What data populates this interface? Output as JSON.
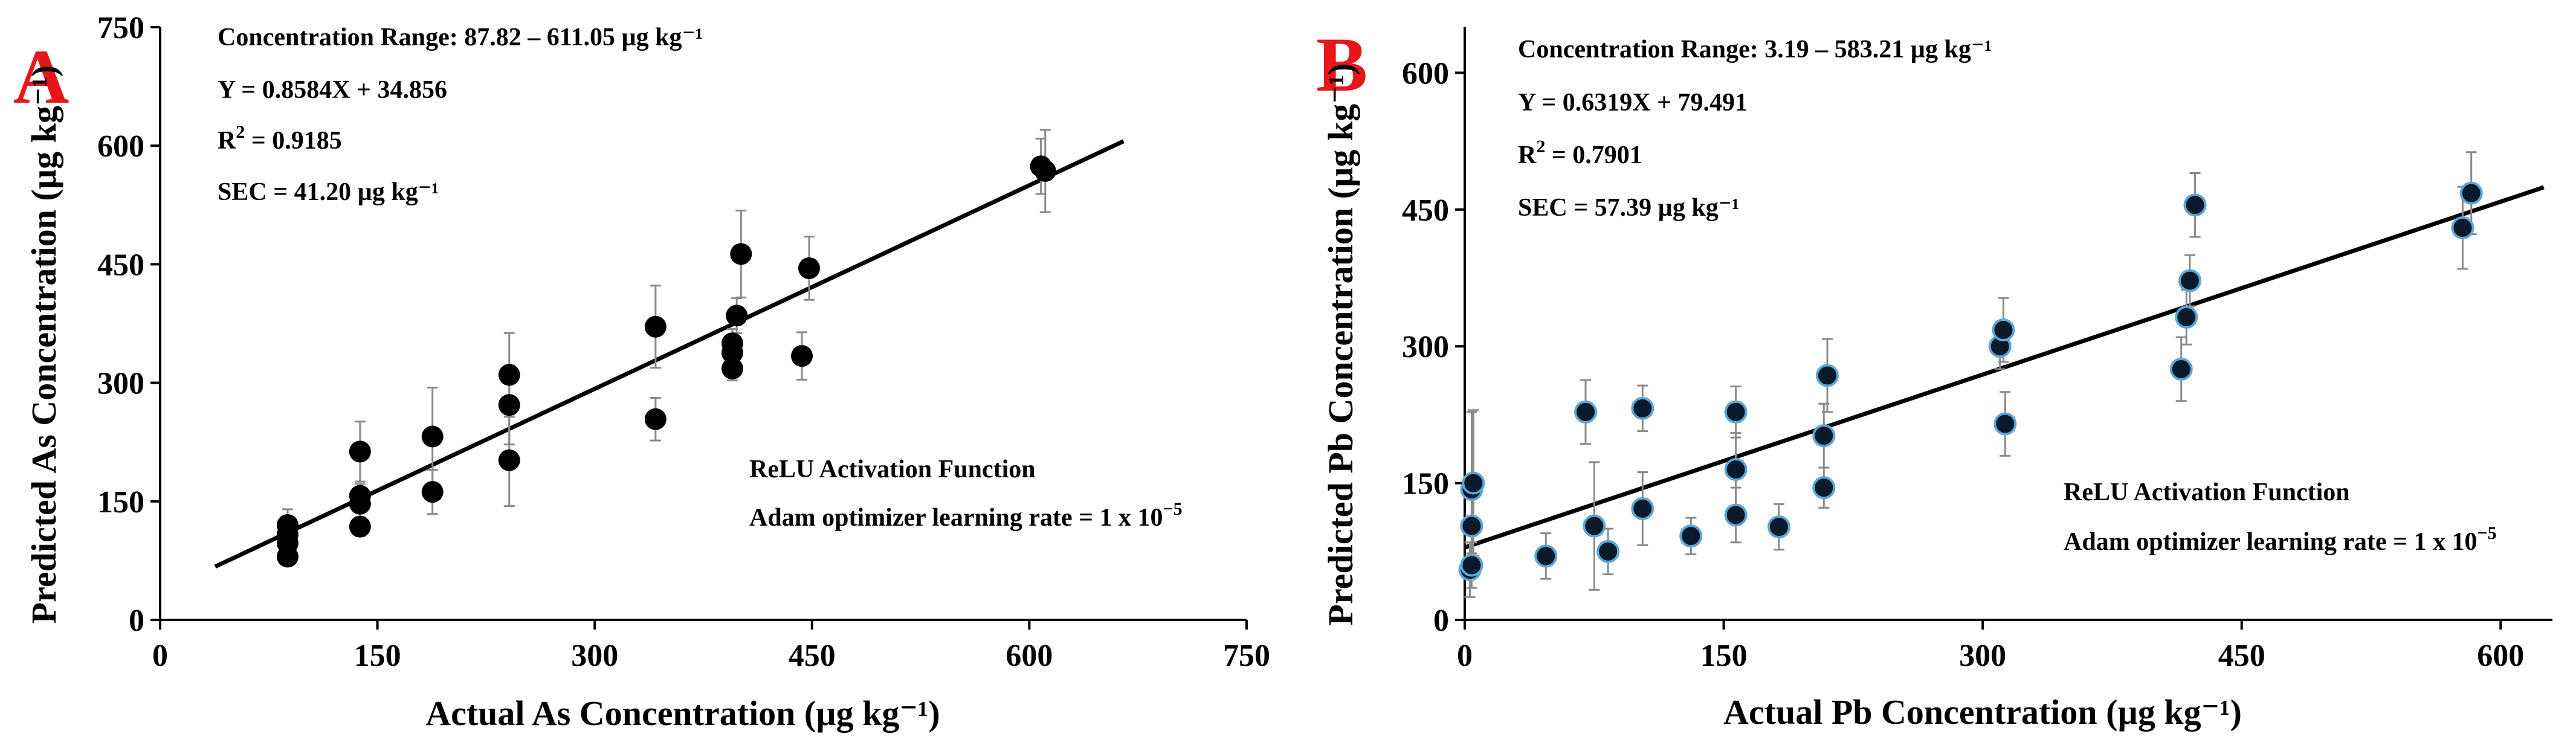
{
  "colors": {
    "panel_letter": "#e8161b",
    "point_fill_A": "#000000",
    "point_fill_B": "#0b1a2a",
    "point_edge_B": "#5aa7d8",
    "error_bar": "#8a8a8a",
    "fit_line": "#000000"
  },
  "chart_data": [
    {
      "type": "scatter",
      "panel_label": "A",
      "xlabel": "Actual As Concentration (µg kg⁻¹)",
      "ylabel": "Predicted As Concentration (µg kg⁻¹)",
      "xlim": [
        0,
        750
      ],
      "ylim": [
        0,
        750
      ],
      "xticks": [
        0,
        150,
        300,
        450,
        600,
        750
      ],
      "yticks": [
        0,
        150,
        300,
        450,
        600,
        750
      ],
      "grid": false,
      "annotations": {
        "range": "Concentration Range: 87.82 – 611.05 µg kg⁻¹",
        "equation": "Y = 0.8584X + 34.856",
        "r2_prefix": "R",
        "r2_sup": "2",
        "r2_value": " = 0.9185",
        "sec": "SEC = 41.20 µg kg⁻¹",
        "activation": "ReLU Activation Function",
        "optimizer_prefix": "Adam optimizer learning rate = 1 x 10",
        "optimizer_exp": "−5"
      },
      "fit_line": {
        "slope": 0.8584,
        "intercept": 34.856,
        "x_range": [
          38,
          665
        ]
      },
      "points": [
        {
          "x": 88,
          "y": 80,
          "err": 0
        },
        {
          "x": 88,
          "y": 97,
          "err": 10
        },
        {
          "x": 88,
          "y": 108,
          "err": 15
        },
        {
          "x": 88,
          "y": 120,
          "err": 20
        },
        {
          "x": 138,
          "y": 118,
          "err": 12
        },
        {
          "x": 138,
          "y": 147,
          "err": 18
        },
        {
          "x": 138,
          "y": 157,
          "err": 15
        },
        {
          "x": 138,
          "y": 213,
          "err": 38
        },
        {
          "x": 188,
          "y": 162,
          "err": 28
        },
        {
          "x": 188,
          "y": 232,
          "err": 62
        },
        {
          "x": 241,
          "y": 202,
          "err": 58
        },
        {
          "x": 241,
          "y": 272,
          "err": 50
        },
        {
          "x": 241,
          "y": 310,
          "err": 53
        },
        {
          "x": 342,
          "y": 254,
          "err": 27
        },
        {
          "x": 342,
          "y": 371,
          "err": 52
        },
        {
          "x": 395,
          "y": 318,
          "err": 15
        },
        {
          "x": 395,
          "y": 338,
          "err": 15
        },
        {
          "x": 395,
          "y": 350,
          "err": 18
        },
        {
          "x": 398,
          "y": 385,
          "err": 22
        },
        {
          "x": 401,
          "y": 463,
          "err": 55
        },
        {
          "x": 443,
          "y": 334,
          "err": 30
        },
        {
          "x": 448,
          "y": 445,
          "err": 40
        },
        {
          "x": 608,
          "y": 574,
          "err": 35
        },
        {
          "x": 611,
          "y": 568,
          "err": 52
        }
      ]
    },
    {
      "type": "scatter",
      "panel_label": "B",
      "xlabel": "Actual Pb Concentration (µg kg⁻¹)",
      "ylabel": "Predicted Pb Concentration (µg kg⁻¹)",
      "xlim": [
        0,
        630
      ],
      "ylim": [
        0,
        650
      ],
      "xticks": [
        0,
        150,
        300,
        450,
        600
      ],
      "yticks": [
        0,
        150,
        300,
        450,
        600
      ],
      "grid": false,
      "annotations": {
        "range": "Concentration Range: 3.19 – 583.21 µg kg⁻¹",
        "equation": "Y = 0.6319X + 79.491",
        "r2_prefix": "R",
        "r2_sup": "2",
        "r2_value": " = 0.7901",
        "sec": "SEC = 57.39 µg kg⁻¹",
        "activation": "ReLU Activation Function",
        "optimizer_prefix": "Adam optimizer learning rate = 1 x 10",
        "optimizer_exp": "−5"
      },
      "fit_line": {
        "slope": 0.6319,
        "intercept": 79.491,
        "x_range": [
          0,
          625
        ]
      },
      "points": [
        {
          "x": 3,
          "y": 55,
          "err": 30
        },
        {
          "x": 4,
          "y": 60,
          "err": 25
        },
        {
          "x": 4,
          "y": 103,
          "err": 30
        },
        {
          "x": 4,
          "y": 143,
          "err": 85
        },
        {
          "x": 5,
          "y": 150,
          "err": 80
        },
        {
          "x": 47,
          "y": 70,
          "err": 25
        },
        {
          "x": 70,
          "y": 228,
          "err": 35
        },
        {
          "x": 75,
          "y": 103,
          "err": 70
        },
        {
          "x": 83,
          "y": 75,
          "err": 25
        },
        {
          "x": 103,
          "y": 122,
          "err": 40
        },
        {
          "x": 103,
          "y": 232,
          "err": 25
        },
        {
          "x": 131,
          "y": 92,
          "err": 20
        },
        {
          "x": 157,
          "y": 115,
          "err": 30
        },
        {
          "x": 157,
          "y": 165,
          "err": 40
        },
        {
          "x": 157,
          "y": 228,
          "err": 28
        },
        {
          "x": 182,
          "y": 102,
          "err": 25
        },
        {
          "x": 208,
          "y": 145,
          "err": 22
        },
        {
          "x": 208,
          "y": 202,
          "err": 35
        },
        {
          "x": 210,
          "y": 268,
          "err": 40
        },
        {
          "x": 310,
          "y": 300,
          "err": 25
        },
        {
          "x": 312,
          "y": 318,
          "err": 35
        },
        {
          "x": 313,
          "y": 215,
          "err": 35
        },
        {
          "x": 415,
          "y": 275,
          "err": 35
        },
        {
          "x": 418,
          "y": 332,
          "err": 30
        },
        {
          "x": 420,
          "y": 372,
          "err": 28
        },
        {
          "x": 423,
          "y": 455,
          "err": 35
        },
        {
          "x": 578,
          "y": 430,
          "err": 45
        },
        {
          "x": 583,
          "y": 468,
          "err": 45
        }
      ]
    }
  ]
}
